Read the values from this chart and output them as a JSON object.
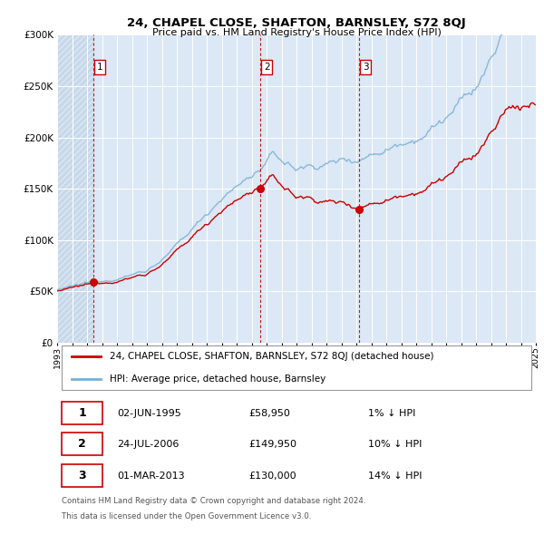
{
  "title": "24, CHAPEL CLOSE, SHAFTON, BARNSLEY, S72 8QJ",
  "subtitle": "Price paid vs. HM Land Registry's House Price Index (HPI)",
  "legend_property": "24, CHAPEL CLOSE, SHAFTON, BARNSLEY, S72 8QJ (detached house)",
  "legend_hpi": "HPI: Average price, detached house, Barnsley",
  "property_color": "#cc0000",
  "hpi_color": "#7ab0d4",
  "background_color": "#dce8f5",
  "hatch_color": "#c8d8e8",
  "sale_points": [
    {
      "label": "1",
      "date_num": 1995.42,
      "price": 58950,
      "hpi_pct": "1% ↓ HPI",
      "date_str": "02-JUN-1995",
      "price_str": "£58,950"
    },
    {
      "label": "2",
      "date_num": 2006.56,
      "price": 149950,
      "hpi_pct": "10% ↓ HPI",
      "date_str": "24-JUL-2006",
      "price_str": "£149,950"
    },
    {
      "label": "3",
      "date_num": 2013.16,
      "price": 130000,
      "hpi_pct": "14% ↓ HPI",
      "date_str": "01-MAR-2013",
      "price_str": "£130,000"
    }
  ],
  "ylim": [
    0,
    300000
  ],
  "yticks": [
    0,
    50000,
    100000,
    150000,
    200000,
    250000,
    300000
  ],
  "ytick_labels": [
    "£0",
    "£50K",
    "£100K",
    "£150K",
    "£200K",
    "£250K",
    "£300K"
  ],
  "xstart": 1993,
  "xend": 2025,
  "hatch_xend": 1995.42,
  "footnote_line1": "Contains HM Land Registry data © Crown copyright and database right 2024.",
  "footnote_line2": "This data is licensed under the Open Government Licence v3.0."
}
